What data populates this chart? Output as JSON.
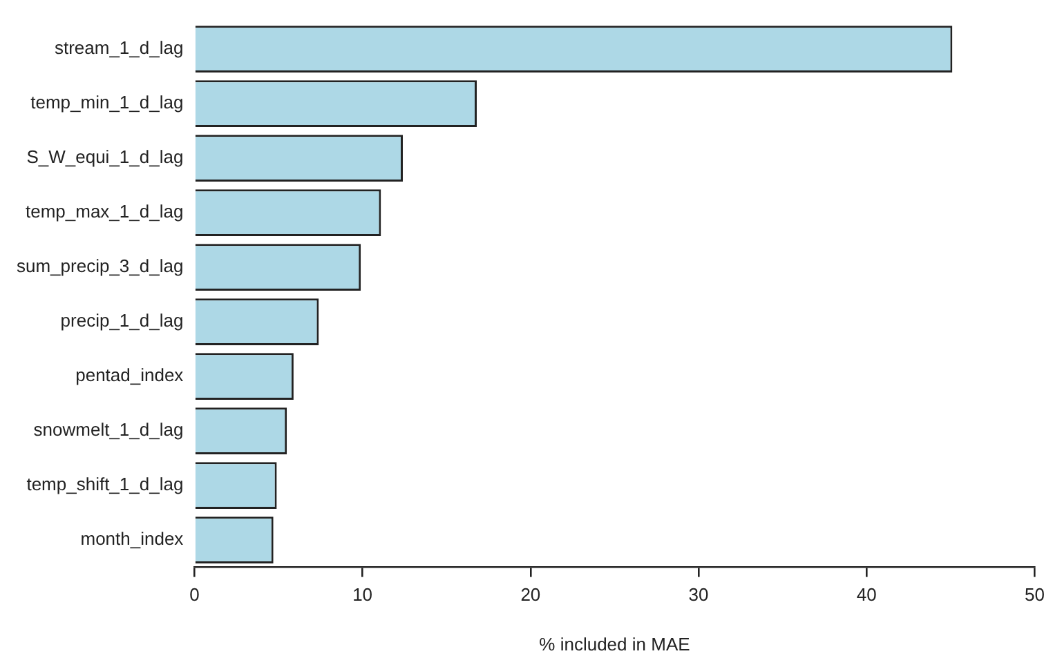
{
  "chart_data": {
    "type": "bar",
    "orientation": "horizontal",
    "xlabel": "% included in MAE",
    "categories": [
      "stream_1_d_lag",
      "temp_min_1_d_lag",
      "S_W_equi_1_d_lag",
      "temp_max_1_d_lag",
      "sum_precip_3_d_lag",
      "precip_1_d_lag",
      "pentad_index",
      "snowmelt_1_d_lag",
      "temp_shift_1_d_lag",
      "month_index"
    ],
    "values": [
      45.1,
      16.8,
      12.4,
      11.1,
      9.9,
      7.4,
      5.9,
      5.5,
      4.9,
      4.7
    ],
    "color": "#add8e6",
    "xlim": [
      0,
      50
    ],
    "xticks": [
      0,
      10,
      20,
      30,
      40,
      50
    ],
    "grid": false,
    "legend": false
  }
}
